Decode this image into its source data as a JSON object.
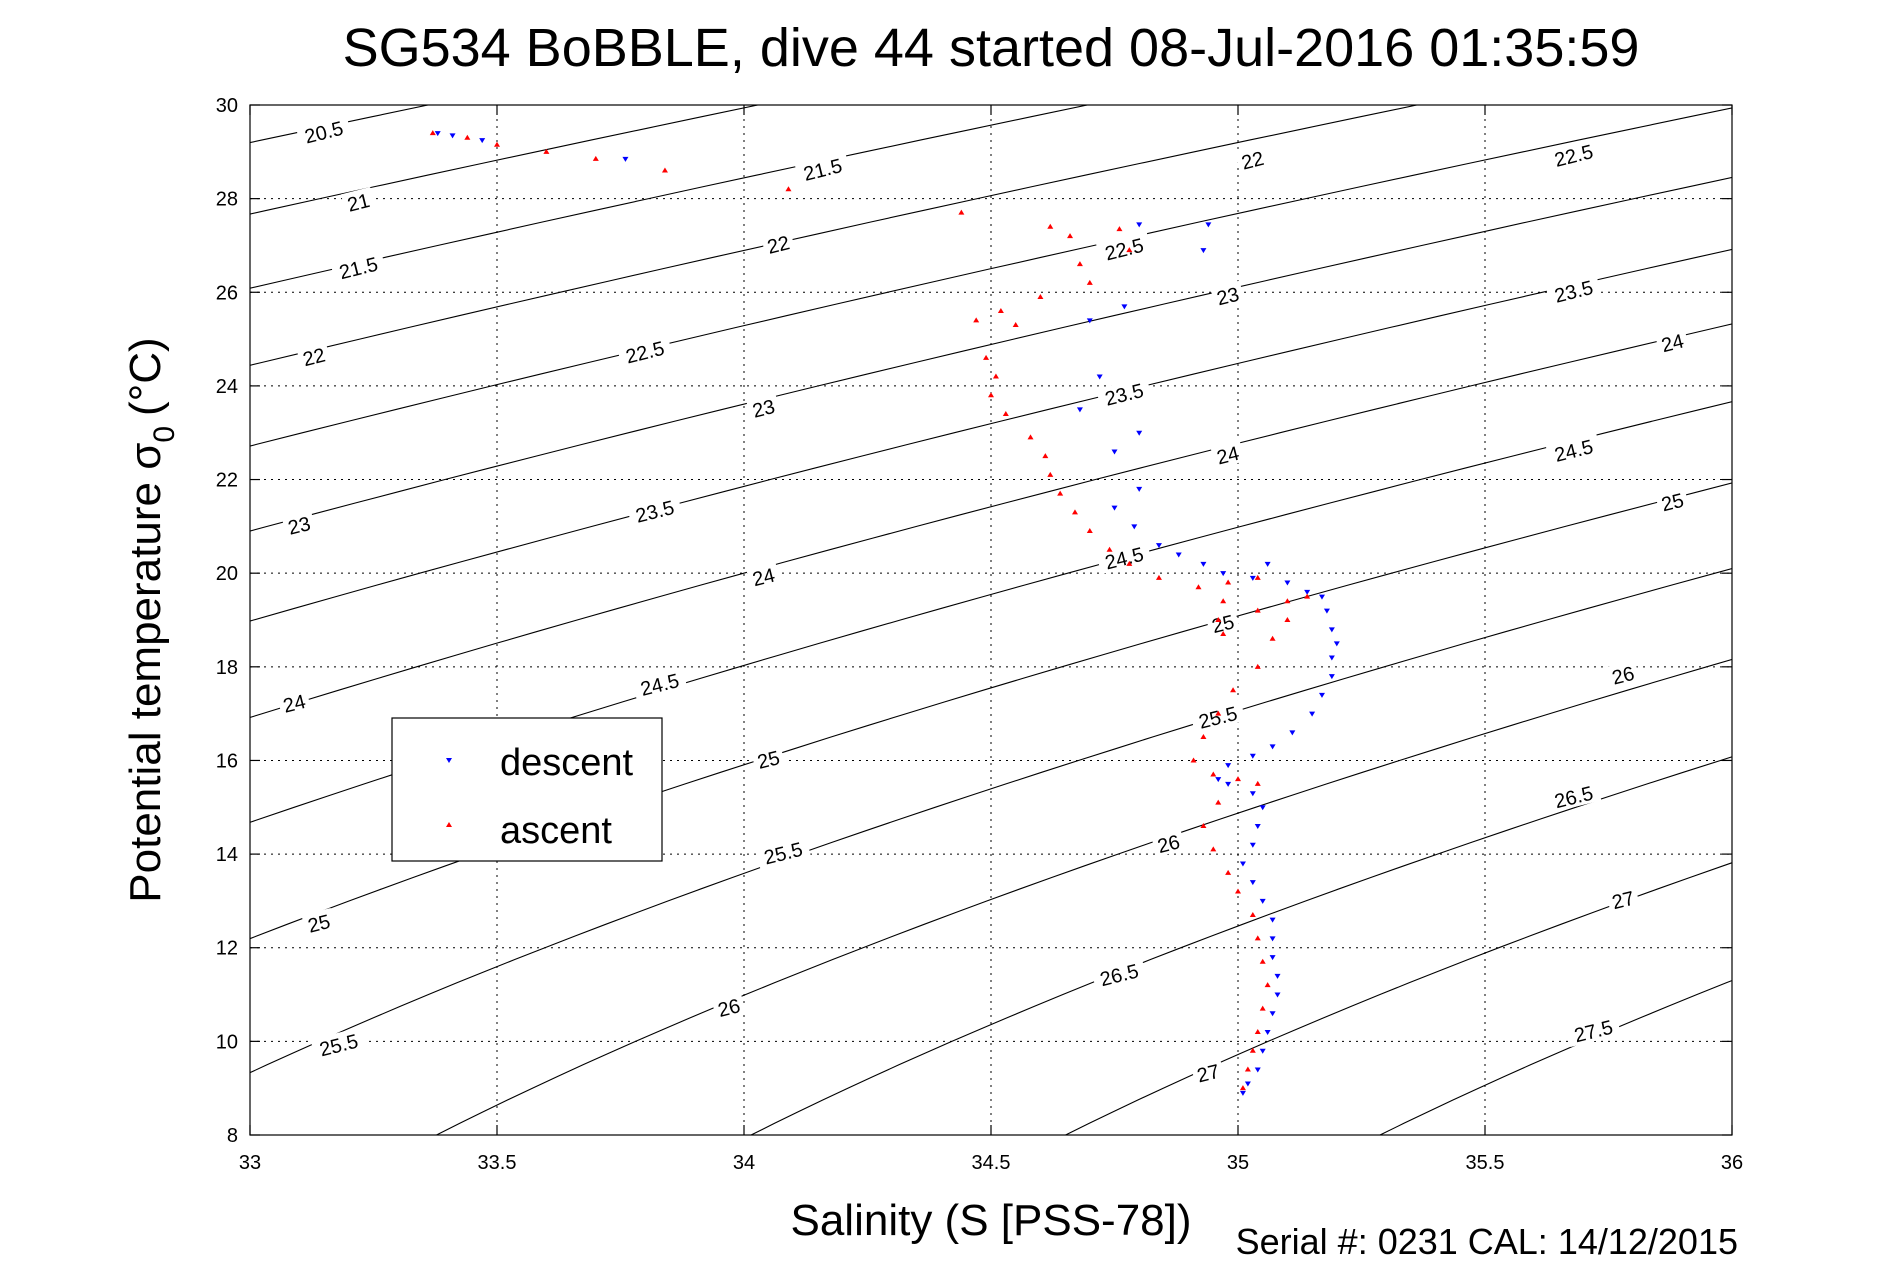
{
  "chart_data": {
    "type": "scatter",
    "title": "SG534 BoBBLE, dive 44 started 08-Jul-2016 01:35:59",
    "xlabel": "Salinity (S [PSS-78])",
    "ylabel_main": "Potential temperature σ",
    "ylabel_sub": "0",
    "ylabel_unit": "(°C)",
    "xlim": [
      33,
      36
    ],
    "ylim": [
      8,
      30
    ],
    "xticks": [
      "33",
      "33.5",
      "34",
      "34.5",
      "35",
      "35.5",
      "36"
    ],
    "yticks": [
      "8",
      "10",
      "12",
      "14",
      "16",
      "18",
      "20",
      "22",
      "24",
      "26",
      "28",
      "30"
    ],
    "grid": true,
    "legend_position": "center-left",
    "contour_levels": [
      20.5,
      21,
      21.5,
      22,
      22.5,
      23,
      23.5,
      24,
      24.5,
      25,
      25.5,
      26,
      26.5,
      27,
      27.5
    ],
    "contour_labels": [
      {
        "text": "20.5",
        "x": 33.15,
        "y": 29.4,
        "angle": -14
      },
      {
        "text": "21",
        "x": 33.22,
        "y": 27.9,
        "angle": -14
      },
      {
        "text": "21.5",
        "x": 33.22,
        "y": 26.5,
        "angle": -14
      },
      {
        "text": "22",
        "x": 33.13,
        "y": 24.6,
        "angle": -14
      },
      {
        "text": "23",
        "x": 33.1,
        "y": 21.0,
        "angle": -14
      },
      {
        "text": "24",
        "x": 33.09,
        "y": 17.2,
        "angle": -14
      },
      {
        "text": "25",
        "x": 33.14,
        "y": 12.5,
        "angle": -14
      },
      {
        "text": "25.5",
        "x": 33.18,
        "y": 9.9,
        "angle": -14
      },
      {
        "text": "21.5",
        "x": 34.16,
        "y": 28.6,
        "angle": -14
      },
      {
        "text": "22",
        "x": 34.07,
        "y": 27.0,
        "angle": -14
      },
      {
        "text": "22.5",
        "x": 33.8,
        "y": 24.7,
        "angle": -14
      },
      {
        "text": "23",
        "x": 34.04,
        "y": 23.5,
        "angle": -14
      },
      {
        "text": "23.5",
        "x": 33.82,
        "y": 21.3,
        "angle": -14
      },
      {
        "text": "24",
        "x": 34.04,
        "y": 19.9,
        "angle": -14
      },
      {
        "text": "24.5",
        "x": 33.83,
        "y": 17.6,
        "angle": -14
      },
      {
        "text": "25",
        "x": 34.05,
        "y": 16.0,
        "angle": -14
      },
      {
        "text": "25.5",
        "x": 34.08,
        "y": 14.0,
        "angle": -14
      },
      {
        "text": "26",
        "x": 33.97,
        "y": 10.7,
        "angle": -14
      },
      {
        "text": "22",
        "x": 35.03,
        "y": 28.8,
        "angle": -14
      },
      {
        "text": "22.5",
        "x": 34.77,
        "y": 26.9,
        "angle": -14
      },
      {
        "text": "23",
        "x": 34.98,
        "y": 25.9,
        "angle": -14
      },
      {
        "text": "23.5",
        "x": 34.77,
        "y": 23.8,
        "angle": -14
      },
      {
        "text": "24",
        "x": 34.98,
        "y": 22.5,
        "angle": -14
      },
      {
        "text": "24.5",
        "x": 34.77,
        "y": 20.3,
        "angle": -14
      },
      {
        "text": "25",
        "x": 34.97,
        "y": 18.9,
        "angle": -14
      },
      {
        "text": "25.5",
        "x": 34.96,
        "y": 16.9,
        "angle": -14
      },
      {
        "text": "26",
        "x": 34.86,
        "y": 14.2,
        "angle": -14
      },
      {
        "text": "26.5",
        "x": 34.76,
        "y": 11.4,
        "angle": -14
      },
      {
        "text": "27",
        "x": 34.94,
        "y": 9.3,
        "angle": -14
      },
      {
        "text": "22.5",
        "x": 35.68,
        "y": 28.9,
        "angle": -14
      },
      {
        "text": "23.5",
        "x": 35.68,
        "y": 26.0,
        "angle": -14
      },
      {
        "text": "24",
        "x": 35.88,
        "y": 24.9,
        "angle": -14
      },
      {
        "text": "24.5",
        "x": 35.68,
        "y": 22.6,
        "angle": -14
      },
      {
        "text": "25",
        "x": 35.88,
        "y": 21.5,
        "angle": -14
      },
      {
        "text": "26",
        "x": 35.78,
        "y": 17.8,
        "angle": -14
      },
      {
        "text": "26.5",
        "x": 35.68,
        "y": 15.2,
        "angle": -14
      },
      {
        "text": "27",
        "x": 35.78,
        "y": 13.0,
        "angle": -14
      },
      {
        "text": "27.5",
        "x": 35.72,
        "y": 10.2,
        "angle": -14
      }
    ],
    "series": [
      {
        "name": "descent",
        "color": "#0000ff",
        "marker": "triangle-down",
        "points": [
          [
            33.38,
            29.4
          ],
          [
            33.41,
            29.35
          ],
          [
            33.47,
            29.25
          ],
          [
            33.76,
            28.85
          ],
          [
            34.8,
            27.45
          ],
          [
            34.94,
            27.45
          ],
          [
            34.93,
            26.9
          ],
          [
            34.77,
            25.7
          ],
          [
            34.7,
            25.4
          ],
          [
            34.72,
            24.2
          ],
          [
            34.68,
            23.5
          ],
          [
            34.8,
            23.0
          ],
          [
            34.75,
            22.6
          ],
          [
            34.8,
            21.8
          ],
          [
            34.75,
            21.4
          ],
          [
            34.79,
            21.0
          ],
          [
            34.84,
            20.6
          ],
          [
            34.88,
            20.4
          ],
          [
            34.93,
            20.2
          ],
          [
            34.97,
            20.0
          ],
          [
            35.03,
            19.9
          ],
          [
            35.06,
            20.2
          ],
          [
            35.1,
            19.8
          ],
          [
            35.14,
            19.6
          ],
          [
            35.17,
            19.5
          ],
          [
            35.18,
            19.2
          ],
          [
            35.19,
            18.8
          ],
          [
            35.2,
            18.5
          ],
          [
            35.19,
            18.2
          ],
          [
            35.19,
            17.8
          ],
          [
            35.17,
            17.4
          ],
          [
            35.15,
            17.0
          ],
          [
            35.11,
            16.6
          ],
          [
            35.07,
            16.3
          ],
          [
            35.03,
            16.1
          ],
          [
            34.98,
            15.9
          ],
          [
            34.96,
            15.6
          ],
          [
            34.98,
            15.5
          ],
          [
            35.03,
            15.3
          ],
          [
            35.05,
            15.0
          ],
          [
            35.04,
            14.6
          ],
          [
            35.03,
            14.2
          ],
          [
            35.01,
            13.8
          ],
          [
            35.03,
            13.4
          ],
          [
            35.05,
            13.0
          ],
          [
            35.07,
            12.6
          ],
          [
            35.07,
            12.2
          ],
          [
            35.07,
            11.8
          ],
          [
            35.08,
            11.4
          ],
          [
            35.08,
            11.0
          ],
          [
            35.07,
            10.6
          ],
          [
            35.06,
            10.2
          ],
          [
            35.05,
            9.8
          ],
          [
            35.04,
            9.4
          ],
          [
            35.02,
            9.1
          ],
          [
            35.01,
            8.9
          ]
        ]
      },
      {
        "name": "ascent",
        "color": "#ff0000",
        "marker": "triangle-up",
        "points": [
          [
            33.37,
            29.4
          ],
          [
            33.44,
            29.3
          ],
          [
            33.5,
            29.15
          ],
          [
            33.6,
            29.0
          ],
          [
            33.7,
            28.85
          ],
          [
            33.84,
            28.6
          ],
          [
            34.09,
            28.2
          ],
          [
            34.44,
            27.7
          ],
          [
            34.62,
            27.4
          ],
          [
            34.66,
            27.2
          ],
          [
            34.76,
            27.35
          ],
          [
            34.78,
            26.9
          ],
          [
            34.68,
            26.6
          ],
          [
            34.7,
            26.2
          ],
          [
            34.6,
            25.9
          ],
          [
            34.52,
            25.6
          ],
          [
            34.47,
            25.4
          ],
          [
            34.55,
            25.3
          ],
          [
            34.49,
            24.6
          ],
          [
            34.51,
            24.2
          ],
          [
            34.5,
            23.8
          ],
          [
            34.53,
            23.4
          ],
          [
            34.58,
            22.9
          ],
          [
            34.61,
            22.5
          ],
          [
            34.62,
            22.1
          ],
          [
            34.64,
            21.7
          ],
          [
            34.67,
            21.3
          ],
          [
            34.7,
            20.9
          ],
          [
            34.74,
            20.5
          ],
          [
            34.78,
            20.2
          ],
          [
            34.84,
            19.9
          ],
          [
            34.92,
            19.7
          ],
          [
            34.98,
            19.8
          ],
          [
            35.04,
            19.9
          ],
          [
            34.97,
            19.4
          ],
          [
            34.96,
            19.0
          ],
          [
            34.97,
            18.7
          ],
          [
            35.04,
            19.2
          ],
          [
            35.1,
            19.4
          ],
          [
            35.14,
            19.5
          ],
          [
            35.1,
            19.0
          ],
          [
            35.07,
            18.6
          ],
          [
            35.04,
            18.0
          ],
          [
            34.99,
            17.5
          ],
          [
            34.96,
            17.0
          ],
          [
            34.93,
            16.5
          ],
          [
            34.91,
            16.0
          ],
          [
            34.95,
            15.7
          ],
          [
            35.0,
            15.6
          ],
          [
            35.04,
            15.5
          ],
          [
            34.96,
            15.1
          ],
          [
            34.93,
            14.6
          ],
          [
            34.95,
            14.1
          ],
          [
            34.98,
            13.6
          ],
          [
            35.0,
            13.2
          ],
          [
            35.03,
            12.7
          ],
          [
            35.04,
            12.2
          ],
          [
            35.05,
            11.7
          ],
          [
            35.06,
            11.2
          ],
          [
            35.05,
            10.7
          ],
          [
            35.04,
            10.2
          ],
          [
            35.03,
            9.8
          ],
          [
            35.02,
            9.4
          ],
          [
            35.01,
            9.0
          ]
        ]
      }
    ]
  },
  "footer": "Serial #: 0231  CAL: 14/12/2015"
}
